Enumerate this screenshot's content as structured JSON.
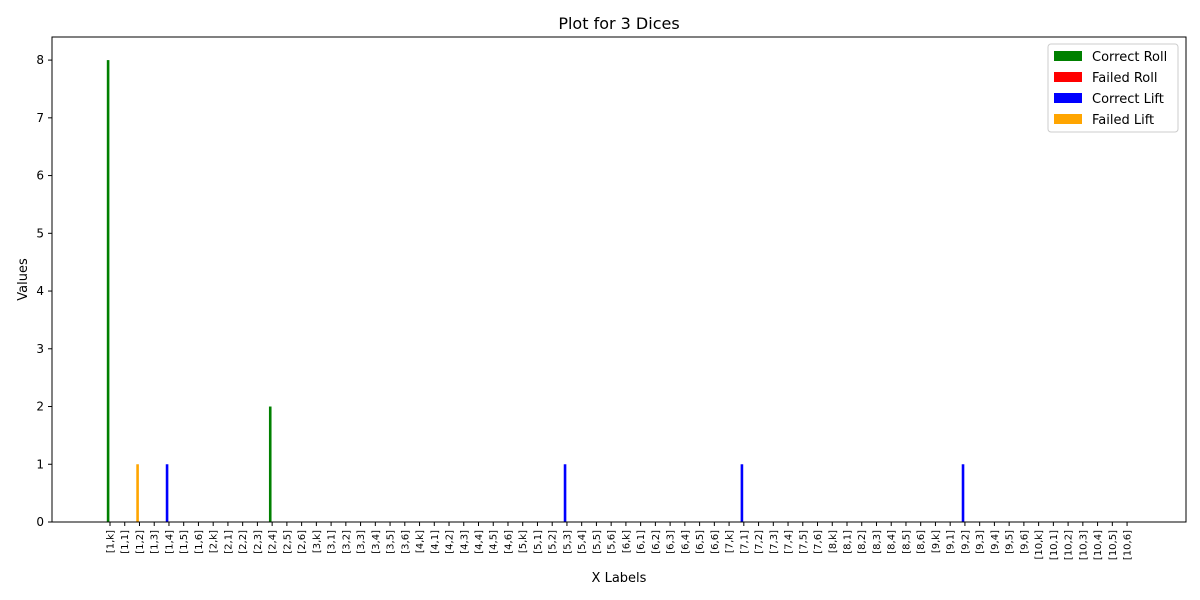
{
  "chart_data": {
    "type": "bar",
    "title": "Plot for 3 Dices",
    "xlabel": "X Labels",
    "ylabel": "Values",
    "ylim": [
      0,
      8.4
    ],
    "yticks": [
      0,
      1,
      2,
      3,
      4,
      5,
      6,
      7,
      8
    ],
    "legend_position": "top-right",
    "categories": [
      "[1,k]",
      "[1,1]",
      "[1,2]",
      "[1,3]",
      "[1,4]",
      "[1,5]",
      "[1,6]",
      "[2,k]",
      "[2,1]",
      "[2,2]",
      "[2,3]",
      "[2,4]",
      "[2,5]",
      "[2,6]",
      "[3,k]",
      "[3,1]",
      "[3,2]",
      "[3,3]",
      "[3,4]",
      "[3,5]",
      "[3,6]",
      "[4,k]",
      "[4,1]",
      "[4,2]",
      "[4,3]",
      "[4,4]",
      "[4,5]",
      "[4,6]",
      "[5,k]",
      "[5,1]",
      "[5,2]",
      "[5,3]",
      "[5,4]",
      "[5,5]",
      "[5,6]",
      "[6,k]",
      "[6,1]",
      "[6,2]",
      "[6,3]",
      "[6,4]",
      "[6,5]",
      "[6,6]",
      "[7,k]",
      "[7,1]",
      "[7,2]",
      "[7,3]",
      "[7,4]",
      "[7,5]",
      "[7,6]",
      "[8,k]",
      "[8,1]",
      "[8,2]",
      "[8,3]",
      "[8,4]",
      "[8,5]",
      "[8,6]",
      "[9,k]",
      "[9,1]",
      "[9,2]",
      "[9,3]",
      "[9,4]",
      "[9,5]",
      "[9,6]",
      "[10,k]",
      "[10,1]",
      "[10,2]",
      "[10,3]",
      "[10,4]",
      "[10,5]",
      "[10,6]"
    ],
    "series": [
      {
        "name": "Correct Roll",
        "color": "#008000",
        "values": {
          "[1,k]": 8,
          "[2,4]": 2
        }
      },
      {
        "name": "Failed Roll",
        "color": "#ff0000",
        "values": {}
      },
      {
        "name": "Correct Lift",
        "color": "#0000ff",
        "values": {
          "[1,4]": 1,
          "[5,3]": 1,
          "[7,1]": 1,
          "[9,2]": 1
        }
      },
      {
        "name": "Failed Lift",
        "color": "#ffa500",
        "values": {
          "[1,2]": 1
        }
      }
    ]
  }
}
